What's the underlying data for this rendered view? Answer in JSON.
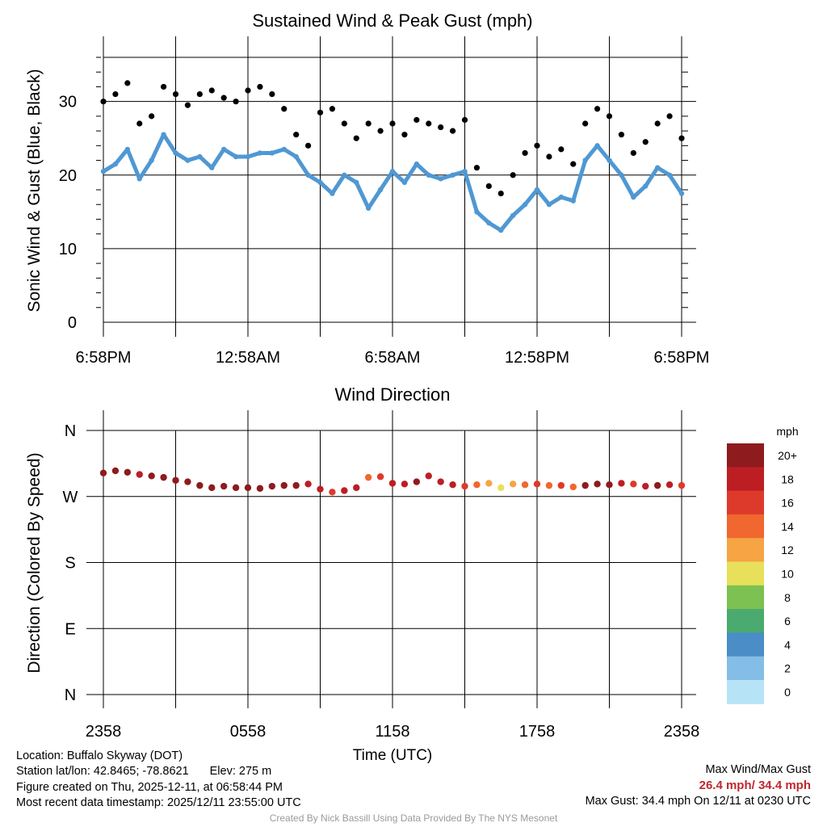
{
  "chart_data": [
    {
      "type": "scatter",
      "title": "Sustained Wind & Peak Gust (mph)",
      "xlabel": "",
      "ylabel": "Sonic Wind & Gust (Blue, Black)",
      "x_tick_labels": [
        "6:58PM",
        "12:58AM",
        "6:58AM",
        "12:58PM",
        "6:58PM"
      ],
      "x_tick_hours": [
        0,
        6,
        12,
        18,
        24
      ],
      "y_ticks": [
        0,
        10,
        20,
        30
      ],
      "ylim": [
        0,
        36
      ],
      "xlim_hours": [
        0,
        24
      ],
      "grid": true,
      "series": [
        {
          "name": "Sustained Wind",
          "color": "#4f98d3",
          "x_hours": [
            0,
            0.5,
            1,
            1.5,
            2,
            2.5,
            3,
            3.5,
            4,
            4.5,
            5,
            5.5,
            6,
            6.5,
            7,
            7.5,
            8,
            8.5,
            9,
            9.5,
            10,
            10.5,
            11,
            11.5,
            12,
            12.5,
            13,
            13.5,
            14,
            14.5,
            15,
            15.5,
            16,
            16.5,
            17,
            17.5,
            18,
            18.5,
            19,
            19.5,
            20,
            20.5,
            21,
            21.5,
            22,
            22.5,
            23,
            23.5,
            24
          ],
          "values": [
            20.5,
            21.5,
            23.5,
            19.5,
            22,
            25.5,
            23,
            22,
            22.5,
            21,
            23.5,
            22.5,
            22.5,
            23,
            23,
            23.5,
            22.5,
            20,
            19,
            17.5,
            20,
            19,
            15.5,
            18,
            20.5,
            19,
            21.5,
            20,
            19.5,
            20,
            20.5,
            15,
            13.5,
            12.5,
            14.5,
            16,
            18,
            16,
            17,
            16.5,
            22,
            24,
            22,
            20,
            17,
            18.5,
            21,
            20,
            17.5
          ]
        },
        {
          "name": "Peak Gust",
          "color": "#000000",
          "x_hours": [
            0,
            0.5,
            1,
            1.5,
            2,
            2.5,
            3,
            3.5,
            4,
            4.5,
            5,
            5.5,
            6,
            6.5,
            7,
            7.5,
            8,
            8.5,
            9,
            9.5,
            10,
            10.5,
            11,
            11.5,
            12,
            12.5,
            13,
            13.5,
            14,
            14.5,
            15,
            15.5,
            16,
            16.5,
            17,
            17.5,
            18,
            18.5,
            19,
            19.5,
            20,
            20.5,
            21,
            21.5,
            22,
            22.5,
            23,
            23.5,
            24
          ],
          "values": [
            30,
            31,
            32.5,
            27,
            28,
            32,
            31,
            29.5,
            31,
            31.5,
            30.5,
            30,
            31.5,
            32,
            31,
            29,
            25.5,
            24,
            28.5,
            29,
            27,
            25,
            27,
            26,
            27,
            25.5,
            27.5,
            27,
            26.5,
            26,
            27.5,
            21,
            18.5,
            17.5,
            20,
            23,
            24,
            22.5,
            23.5,
            21.5,
            27,
            29,
            28,
            25.5,
            23,
            24.5,
            27,
            28,
            25
          ]
        }
      ]
    },
    {
      "type": "scatter",
      "title": "Wind Direction",
      "xlabel": "Time (UTC)",
      "ylabel": "Direction (Colored By Speed)",
      "x_tick_labels": [
        "2358",
        "0558",
        "1158",
        "1758",
        "2358"
      ],
      "x_tick_hours": [
        0,
        6,
        12,
        18,
        24
      ],
      "y_tick_labels": [
        "N",
        "W",
        "S",
        "E",
        "N"
      ],
      "y_tick_degrees": [
        360,
        270,
        180,
        90,
        0
      ],
      "ylim": [
        0,
        360
      ],
      "xlim_hours": [
        0,
        24
      ],
      "grid": true,
      "series": [
        {
          "name": "Direction",
          "x_hours": [
            0,
            0.5,
            1,
            1.5,
            2,
            2.5,
            3,
            3.5,
            4,
            4.5,
            5,
            5.5,
            6,
            6.5,
            7,
            7.5,
            8,
            8.5,
            9,
            9.5,
            10,
            10.5,
            11,
            11.5,
            12,
            12.5,
            13,
            13.5,
            14,
            14.5,
            15,
            15.5,
            16,
            16.5,
            17,
            17.5,
            18,
            18.5,
            19,
            19.5,
            20,
            20.5,
            21,
            21.5,
            22,
            22.5,
            23,
            23.5,
            24
          ],
          "degrees": [
            302,
            305,
            303,
            300,
            298,
            296,
            292,
            290,
            285,
            282,
            284,
            282,
            282,
            281,
            284,
            285,
            285,
            287,
            280,
            276,
            278,
            282,
            296,
            297,
            288,
            287,
            290,
            298,
            290,
            286,
            284,
            286,
            288,
            282,
            287,
            286,
            287,
            285,
            285,
            283,
            285,
            287,
            286,
            288,
            287,
            284,
            285,
            286,
            285
          ],
          "speeds": [
            20,
            21,
            22,
            19,
            21,
            24,
            22,
            21,
            22,
            20,
            22,
            21,
            21,
            22,
            22,
            22,
            21,
            19,
            18,
            17,
            19,
            18,
            15,
            17,
            19,
            18,
            20,
            19,
            18,
            19,
            16,
            14,
            12,
            11,
            13,
            15,
            17,
            15,
            16,
            15,
            20,
            22,
            21,
            19,
            16,
            18,
            20,
            19,
            17
          ]
        }
      ],
      "colorbar": {
        "title": "mph",
        "labels": [
          "20+",
          "18",
          "16",
          "14",
          "12",
          "10",
          "8",
          "6",
          "4",
          "2",
          "0"
        ],
        "colors": [
          "#8e1b1e",
          "#bd1e24",
          "#dd3a2c",
          "#f0672f",
          "#f6a444",
          "#e8e05a",
          "#7cc151",
          "#4baa6f",
          "#4a8dc7",
          "#84bde6",
          "#b7e3f7"
        ]
      }
    }
  ],
  "footer": {
    "location": "Location: Buffalo Skyway (DOT)",
    "latlon": "Station lat/lon: 42.8465; -78.8621",
    "elev": "Elev: 275 m",
    "created": "Figure created on Thu, 2025-12-11, at 06:58:44 PM",
    "recent": "Most recent data timestamp: 2025/12/11 23:55:00 UTC",
    "max_title": "Max Wind/Max Gust",
    "max_values": "26.4 mph/ 34.4 mph",
    "max_gust_time": "Max Gust: 34.4 mph On 12/11 at 0230 UTC",
    "credit": "Created By Nick Bassill Using Data Provided By The NYS Mesonet"
  }
}
